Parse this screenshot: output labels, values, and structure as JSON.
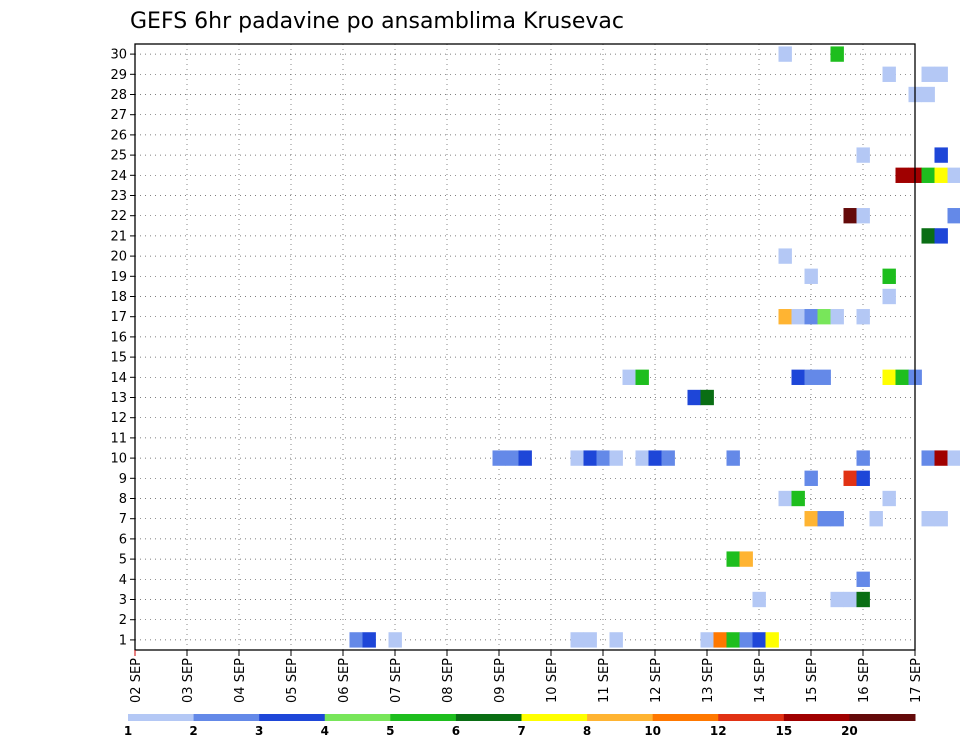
{
  "chart_data": {
    "type": "heatmap",
    "title": "GEFS 6hr padavine po ansamblima Krusevac",
    "x_tick_labels": [
      "02 SEP",
      "03 SEP",
      "04 SEP",
      "05 SEP",
      "06 SEP",
      "07 SEP",
      "08 SEP",
      "09 SEP",
      "10 SEP",
      "11 SEP",
      "12 SEP",
      "13 SEP",
      "14 SEP",
      "15 SEP",
      "16 SEP",
      "17 SEP"
    ],
    "y_tick_labels": [
      "1",
      "2",
      "3",
      "4",
      "5",
      "6",
      "7",
      "8",
      "9",
      "10",
      "11",
      "12",
      "13",
      "14",
      "15",
      "16",
      "17",
      "18",
      "19",
      "20",
      "21",
      "22",
      "23",
      "24",
      "25",
      "26",
      "27",
      "28",
      "29",
      "30"
    ],
    "x_range_days": [
      2,
      17
    ],
    "y_range": [
      0.5,
      30.5
    ],
    "grid": true,
    "colorbar": {
      "thresholds": [
        "1",
        "2",
        "3",
        "4",
        "5",
        "6",
        "7",
        "8",
        "10",
        "12",
        "15",
        "20"
      ],
      "colors": [
        "#b4c8f5",
        "#6489e8",
        "#1e46d8",
        "#78e65a",
        "#1ebe1e",
        "#0a6e14",
        "#ffff00",
        "#ffb432",
        "#ff7800",
        "#e13214",
        "#a00000",
        "#640a0a"
      ]
    },
    "cells": [
      {
        "member": 30,
        "t": 14.5,
        "level": 1
      },
      {
        "member": 30,
        "t": 15.5,
        "level": 5
      },
      {
        "member": 29,
        "t": 16.5,
        "level": 1
      },
      {
        "member": 29,
        "t": 17.25,
        "level": 1
      },
      {
        "member": 29,
        "t": 17.5,
        "level": 1
      },
      {
        "member": 28,
        "t": 17.0,
        "level": 1
      },
      {
        "member": 28,
        "t": 17.25,
        "level": 1
      },
      {
        "member": 25,
        "t": 16.0,
        "level": 1
      },
      {
        "member": 25,
        "t": 17.5,
        "level": 3
      },
      {
        "member": 24,
        "t": 16.75,
        "level": 11
      },
      {
        "member": 24,
        "t": 17.0,
        "level": 11
      },
      {
        "member": 24,
        "t": 17.25,
        "level": 5
      },
      {
        "member": 24,
        "t": 17.5,
        "level": 7
      },
      {
        "member": 24,
        "t": 17.75,
        "level": 1
      },
      {
        "member": 22,
        "t": 15.75,
        "level": 12
      },
      {
        "member": 22,
        "t": 16.0,
        "level": 1
      },
      {
        "member": 22,
        "t": 17.75,
        "level": 2
      },
      {
        "member": 21,
        "t": 17.25,
        "level": 6
      },
      {
        "member": 21,
        "t": 17.5,
        "level": 3
      },
      {
        "member": 20,
        "t": 14.5,
        "level": 1
      },
      {
        "member": 19,
        "t": 15.0,
        "level": 1
      },
      {
        "member": 19,
        "t": 16.5,
        "level": 5
      },
      {
        "member": 18,
        "t": 16.5,
        "level": 1
      },
      {
        "member": 17,
        "t": 14.5,
        "level": 8
      },
      {
        "member": 17,
        "t": 14.75,
        "level": 1
      },
      {
        "member": 17,
        "t": 15.0,
        "level": 2
      },
      {
        "member": 17,
        "t": 15.25,
        "level": 4
      },
      {
        "member": 17,
        "t": 15.5,
        "level": 1
      },
      {
        "member": 17,
        "t": 16.0,
        "level": 1
      },
      {
        "member": 14,
        "t": 11.5,
        "level": 1
      },
      {
        "member": 14,
        "t": 11.75,
        "level": 5
      },
      {
        "member": 14,
        "t": 14.75,
        "level": 3
      },
      {
        "member": 14,
        "t": 15.0,
        "level": 2
      },
      {
        "member": 14,
        "t": 15.25,
        "level": 2
      },
      {
        "member": 14,
        "t": 16.5,
        "level": 7
      },
      {
        "member": 14,
        "t": 16.75,
        "level": 5
      },
      {
        "member": 14,
        "t": 17.0,
        "level": 2
      },
      {
        "member": 13,
        "t": 12.75,
        "level": 3
      },
      {
        "member": 13,
        "t": 13.0,
        "level": 6
      },
      {
        "member": 10,
        "t": 9.0,
        "level": 2
      },
      {
        "member": 10,
        "t": 9.25,
        "level": 2
      },
      {
        "member": 10,
        "t": 9.5,
        "level": 3
      },
      {
        "member": 10,
        "t": 10.5,
        "level": 1
      },
      {
        "member": 10,
        "t": 10.75,
        "level": 3
      },
      {
        "member": 10,
        "t": 11.0,
        "level": 2
      },
      {
        "member": 10,
        "t": 11.25,
        "level": 1
      },
      {
        "member": 10,
        "t": 11.75,
        "level": 1
      },
      {
        "member": 10,
        "t": 12.0,
        "level": 3
      },
      {
        "member": 10,
        "t": 12.25,
        "level": 2
      },
      {
        "member": 10,
        "t": 13.5,
        "level": 2
      },
      {
        "member": 10,
        "t": 16.0,
        "level": 2
      },
      {
        "member": 10,
        "t": 17.25,
        "level": 2
      },
      {
        "member": 10,
        "t": 17.5,
        "level": 11
      },
      {
        "member": 10,
        "t": 17.75,
        "level": 1
      },
      {
        "member": 9,
        "t": 15.0,
        "level": 2
      },
      {
        "member": 9,
        "t": 15.75,
        "level": 10
      },
      {
        "member": 9,
        "t": 16.0,
        "level": 3
      },
      {
        "member": 8,
        "t": 14.5,
        "level": 1
      },
      {
        "member": 8,
        "t": 14.75,
        "level": 5
      },
      {
        "member": 8,
        "t": 16.5,
        "level": 1
      },
      {
        "member": 7,
        "t": 15.0,
        "level": 8
      },
      {
        "member": 7,
        "t": 15.25,
        "level": 2
      },
      {
        "member": 7,
        "t": 15.5,
        "level": 2
      },
      {
        "member": 7,
        "t": 16.25,
        "level": 1
      },
      {
        "member": 7,
        "t": 17.25,
        "level": 1
      },
      {
        "member": 7,
        "t": 17.5,
        "level": 1
      },
      {
        "member": 5,
        "t": 13.5,
        "level": 5
      },
      {
        "member": 5,
        "t": 13.75,
        "level": 8
      },
      {
        "member": 4,
        "t": 16.0,
        "level": 2
      },
      {
        "member": 3,
        "t": 14.0,
        "level": 1
      },
      {
        "member": 3,
        "t": 15.5,
        "level": 1
      },
      {
        "member": 3,
        "t": 15.75,
        "level": 1
      },
      {
        "member": 3,
        "t": 16.0,
        "level": 6
      },
      {
        "member": 1,
        "t": 6.25,
        "level": 2
      },
      {
        "member": 1,
        "t": 6.5,
        "level": 3
      },
      {
        "member": 1,
        "t": 7.0,
        "level": 1
      },
      {
        "member": 1,
        "t": 10.5,
        "level": 1
      },
      {
        "member": 1,
        "t": 10.75,
        "level": 1
      },
      {
        "member": 1,
        "t": 11.25,
        "level": 1
      },
      {
        "member": 1,
        "t": 13.0,
        "level": 1
      },
      {
        "member": 1,
        "t": 13.25,
        "level": 9
      },
      {
        "member": 1,
        "t": 13.5,
        "level": 5
      },
      {
        "member": 1,
        "t": 13.75,
        "level": 2
      },
      {
        "member": 1,
        "t": 14.0,
        "level": 3
      },
      {
        "member": 1,
        "t": 14.25,
        "level": 7
      }
    ]
  }
}
